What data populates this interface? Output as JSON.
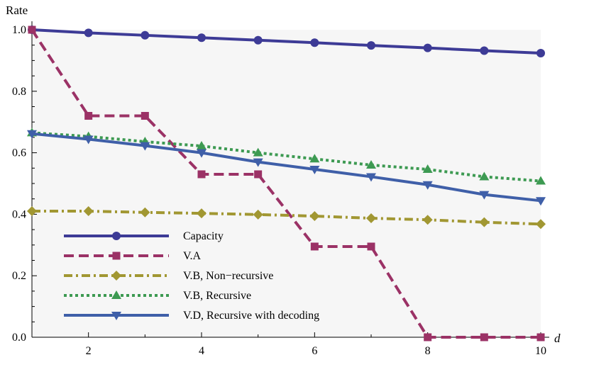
{
  "chart_data": {
    "type": "line",
    "title": "",
    "xlabel": "d",
    "ylabel": "Rate",
    "xlim": [
      1,
      10
    ],
    "ylim": [
      0,
      1.0
    ],
    "xticks": [
      "2",
      "4",
      "6",
      "8",
      "10"
    ],
    "yticks": [
      "0.0",
      "0.2",
      "0.4",
      "0.6",
      "0.8",
      "1.0"
    ],
    "grid": false,
    "legend_position": "bottom-left",
    "x": [
      1,
      2,
      3,
      4,
      5,
      6,
      7,
      8,
      9,
      10
    ],
    "series": [
      {
        "name": "Capacity",
        "style": "solid",
        "step": false,
        "marker": "circle",
        "color": "#3d3b96",
        "values": [
          1.0,
          0.99,
          0.982,
          0.974,
          0.966,
          0.958,
          0.949,
          0.941,
          0.932,
          0.924
        ]
      },
      {
        "name": "V.A",
        "style": "dashed",
        "step": true,
        "marker": "square",
        "color": "#9b3266",
        "values": [
          1.0,
          0.72,
          0.72,
          0.53,
          0.53,
          0.295,
          0.295,
          0.0,
          0.0,
          0.0
        ]
      },
      {
        "name": "V.B, Non−recursive",
        "style": "dashdot",
        "step": false,
        "marker": "diamond",
        "color": "#a19732",
        "values": [
          0.41,
          0.41,
          0.406,
          0.403,
          0.399,
          0.394,
          0.387,
          0.382,
          0.374,
          0.368
        ]
      },
      {
        "name": "V.B, Recursive",
        "style": "dotted",
        "step": false,
        "marker": "triangle-up",
        "color": "#3d9a52",
        "values": [
          0.665,
          0.653,
          0.636,
          0.622,
          0.6,
          0.58,
          0.56,
          0.546,
          0.522,
          0.508
        ]
      },
      {
        "name": "V.D, Recursive with decoding",
        "style": "solid",
        "step": false,
        "marker": "triangle-down",
        "color": "#3f5fa8",
        "values": [
          0.662,
          0.644,
          0.623,
          0.6,
          0.57,
          0.546,
          0.522,
          0.496,
          0.464,
          0.444
        ]
      }
    ]
  }
}
